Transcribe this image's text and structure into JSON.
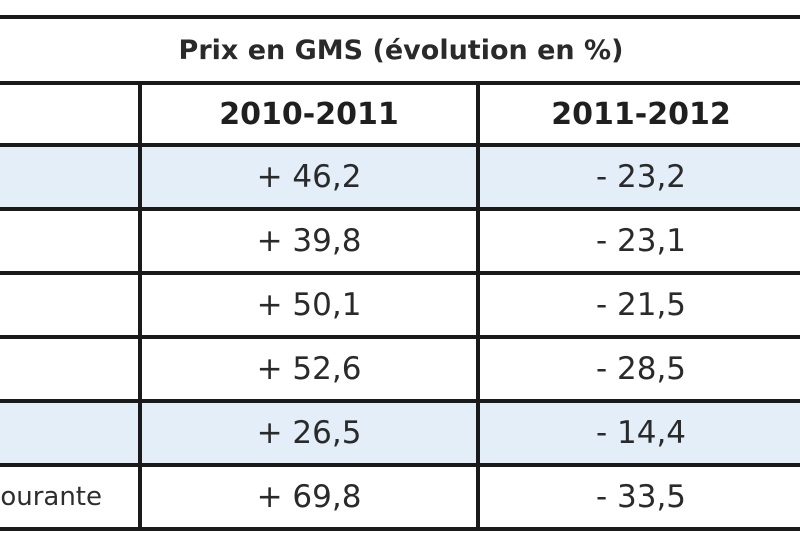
{
  "table": {
    "title": "Prix en GMS (évolution en %)",
    "columns": [
      "",
      "2010-2011",
      "2011-2012"
    ],
    "rows": [
      {
        "label": "",
        "values": [
          "+ 46,2",
          "- 23,2"
        ]
      },
      {
        "label": "",
        "values": [
          "+ 39,8",
          "- 23,1"
        ]
      },
      {
        "label": "",
        "values": [
          "+ 50,1",
          "- 21,5"
        ]
      },
      {
        "label": "",
        "values": [
          "+ 52,6",
          "- 28,5"
        ]
      },
      {
        "label": "",
        "values": [
          "+ 26,5",
          "- 14,4"
        ]
      },
      {
        "label": "ourante",
        "values": [
          "+ 69,8",
          "- 33,5"
        ]
      }
    ]
  },
  "colors": {
    "row_shaded": "#e3eef8",
    "row_plain": "#ffffff",
    "border": "#1a1a1a"
  }
}
